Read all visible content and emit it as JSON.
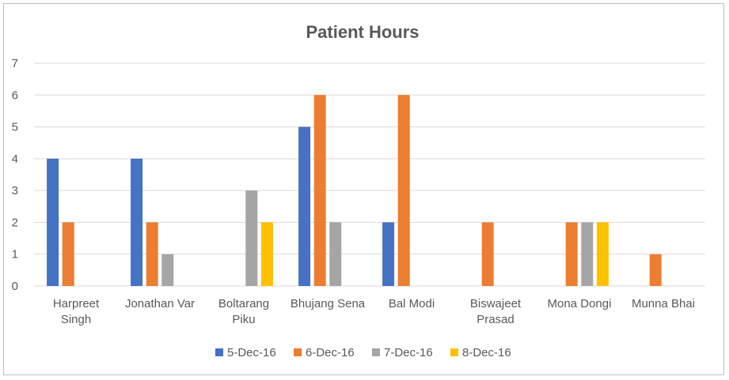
{
  "chart_data": {
    "type": "bar",
    "title": "Patient Hours",
    "xlabel": "",
    "ylabel": "",
    "ylim": [
      0,
      7
    ],
    "yticks": [
      0,
      1,
      2,
      3,
      4,
      5,
      6,
      7
    ],
    "grid": true,
    "legend_position": "bottom",
    "categories": [
      [
        "Harpreet",
        "Singh"
      ],
      [
        "Jonathan Var"
      ],
      [
        "Boltarang",
        "Piku"
      ],
      [
        "Bhujang Sena"
      ],
      [
        "Bal Modi"
      ],
      [
        "Biswajeet",
        "Prasad"
      ],
      [
        "Mona Dongi"
      ],
      [
        "Munna Bhai"
      ]
    ],
    "series": [
      {
        "name": "5-Dec-16",
        "color": "#4472c4",
        "values": [
          4,
          4,
          null,
          5,
          2,
          null,
          null,
          null
        ]
      },
      {
        "name": "6-Dec-16",
        "color": "#ed7d31",
        "values": [
          2,
          2,
          null,
          6,
          6,
          2,
          2,
          1
        ]
      },
      {
        "name": "7-Dec-16",
        "color": "#a5a5a5",
        "values": [
          null,
          1,
          3,
          2,
          null,
          null,
          2,
          null
        ]
      },
      {
        "name": "8-Dec-16",
        "color": "#ffc000",
        "values": [
          null,
          null,
          2,
          null,
          null,
          null,
          2,
          null
        ]
      }
    ]
  }
}
